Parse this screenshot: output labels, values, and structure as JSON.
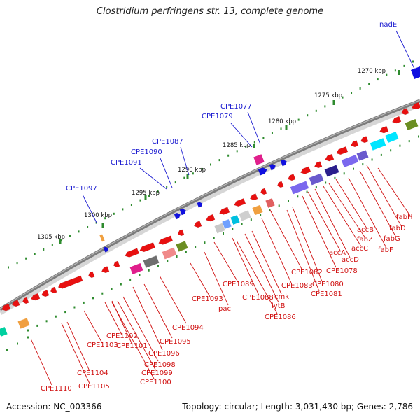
{
  "title": "Clostridium perfringens str. 13, complete genome",
  "accession": "Accession: NC_003366",
  "summary": "Topology: circular; Length: 3,031,430 bp; Genes: 2,786",
  "colors": {
    "forward_label": "#1a1ad0",
    "reverse_label": "#d01010",
    "backbone": "#808080",
    "ruler_tick": "#2e8b2e",
    "minor_dot": "#2e8b2e"
  },
  "ruler_labels": [
    "1270 kbp",
    "1275 kbp",
    "1280 kbp",
    "1285 kbp",
    "1290 kbp",
    "1295 kbp",
    "1300 kbp",
    "1305 kbp"
  ],
  "forward_gene_labels": [
    "nadE",
    "CPE1077",
    "CPE1079",
    "CPE1087",
    "CPE1090",
    "CPE1091",
    "CPE1097"
  ],
  "reverse_gene_labels": [
    "fabH",
    "fabD",
    "fabG",
    "accB",
    "fabF",
    "fabZ",
    "accC",
    "accD",
    "accA",
    "CPE1078",
    "CPE1082",
    "CPE1080",
    "CPE1083",
    "CPE1081",
    "CPE1089",
    "cmk",
    "CPE1088",
    "lytB",
    "CPE1086",
    "CPE1093",
    "pac",
    "CPE1094",
    "CPE1095",
    "CPE1096",
    "CPE1102",
    "CPE1103",
    "CPE1101",
    "CPE1098",
    "CPE1099",
    "CPE1100",
    "CPE1104",
    "CPE1105",
    "CPE1110"
  ]
}
